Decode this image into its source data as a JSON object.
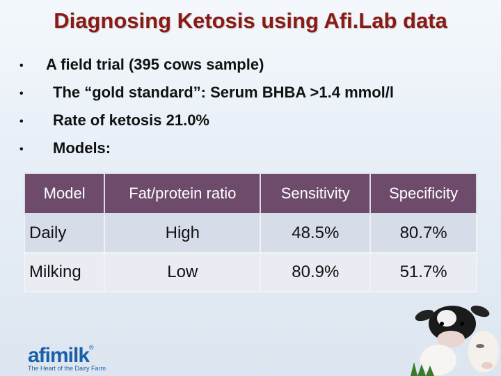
{
  "slide": {
    "title": "Diagnosing Ketosis using Afi.Lab data"
  },
  "bullets": [
    {
      "text": "A field trial (395 cows sample)"
    },
    {
      "text": "The “gold standard”: Serum BHBA >1.4 mmol/l"
    },
    {
      "text": "Rate of ketosis 21.0%"
    },
    {
      "text": "Models:"
    }
  ],
  "table": {
    "headers": [
      "Model",
      "Fat/protein ratio",
      "Sensitivity",
      "Specificity"
    ],
    "rows": [
      [
        "Daily",
        "High",
        "48.5%",
        "80.7%"
      ],
      [
        "Milking",
        "Low",
        "80.9%",
        "51.7%"
      ]
    ],
    "header_color": "#6e4a6b"
  },
  "logo": {
    "word": "afimilk",
    "registered": "®",
    "tagline": "The Heart of the Dairy Farm"
  },
  "colors": {
    "title": "#8b1a14",
    "brand": "#1a5fa8"
  }
}
